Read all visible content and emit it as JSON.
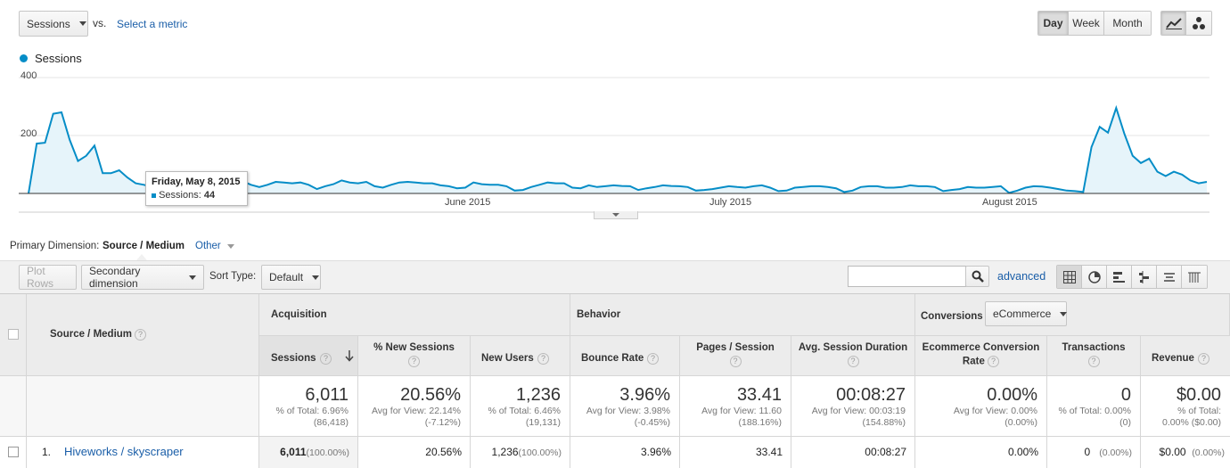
{
  "metric_select": {
    "value": "Sessions"
  },
  "vs_label": "vs.",
  "select_metric_link": "Select a metric",
  "period_buttons": [
    "Day",
    "Week",
    "Month"
  ],
  "active_period": "Day",
  "legend": {
    "series_name": "Sessions",
    "color": "#058dc7"
  },
  "chart_data": {
    "type": "area",
    "series": [
      {
        "name": "Sessions",
        "values": [
          0,
          172,
          175,
          275,
          280,
          185,
          112,
          130,
          165,
          70,
          70,
          80,
          55,
          35,
          30,
          22,
          20,
          15,
          25,
          40,
          44,
          25,
          30,
          48,
          45,
          48,
          42,
          30,
          22,
          30,
          40,
          38,
          35,
          38,
          30,
          15,
          25,
          32,
          45,
          38,
          35,
          40,
          25,
          20,
          30,
          38,
          40,
          38,
          35,
          35,
          28,
          25,
          18,
          20,
          38,
          32,
          30,
          30,
          25,
          10,
          12,
          22,
          30,
          38,
          35,
          35,
          20,
          18,
          28,
          22,
          25,
          28,
          26,
          25,
          12,
          18,
          22,
          28,
          26,
          25,
          22,
          10,
          12,
          15,
          20,
          25,
          22,
          20,
          25,
          28,
          20,
          8,
          10,
          20,
          22,
          25,
          25,
          22,
          18,
          5,
          10,
          22,
          25,
          25,
          20,
          20,
          22,
          28,
          25,
          25,
          22,
          8,
          12,
          15,
          22,
          20,
          20,
          22,
          25,
          2,
          10,
          20,
          25,
          24,
          20,
          15,
          10,
          8,
          5,
          160,
          230,
          210,
          295,
          205,
          130,
          105,
          120,
          75,
          60,
          75,
          65,
          45,
          35,
          40
        ]
      }
    ],
    "x_ticks": [
      "June 2015",
      "July 2015",
      "August 2015"
    ],
    "y_ticks": [
      200,
      400
    ],
    "ylim": [
      0,
      400
    ],
    "tooltip": {
      "date": "Friday, May 8, 2015",
      "label": "Sessions:",
      "value": "44"
    }
  },
  "primary_dimension": {
    "label": "Primary Dimension:",
    "value": "Source / Medium",
    "other": "Other"
  },
  "toolbar": {
    "plot_rows": "Plot Rows",
    "secondary_dimension": "Secondary dimension",
    "sort_type_label": "Sort Type:",
    "sort_type_value": "Default",
    "search_placeholder": "",
    "advanced": "advanced"
  },
  "table": {
    "first_col_header": "Source / Medium",
    "groups": {
      "acquisition": "Acquisition",
      "behavior": "Behavior",
      "conversions": "Conversions",
      "conversions_select": "eCommerce"
    },
    "columns": {
      "sessions": "Sessions",
      "new_sessions": "% New Sessions",
      "new_users": "New Users",
      "bounce_rate": "Bounce Rate",
      "pages_session": "Pages / Session",
      "avg_duration": "Avg. Session Duration",
      "ecom_rate_1": "Ecommerce Conversion",
      "ecom_rate_2": "Rate",
      "transactions": "Transactions",
      "revenue": "Revenue"
    },
    "totals": {
      "sessions": {
        "value": "6,011",
        "sub1": "% of Total: 6.96%",
        "sub2": "(86,418)"
      },
      "new_sessions": {
        "value": "20.56%",
        "sub1": "Avg for View: 22.14%",
        "sub2": "(-7.12%)"
      },
      "new_users": {
        "value": "1,236",
        "sub1": "% of Total: 6.46%",
        "sub2": "(19,131)"
      },
      "bounce_rate": {
        "value": "3.96%",
        "sub1": "Avg for View: 3.98%",
        "sub2": "(-0.45%)"
      },
      "pages_session": {
        "value": "33.41",
        "sub1": "Avg for View: 11.60",
        "sub2": "(188.16%)"
      },
      "avg_duration": {
        "value": "00:08:27",
        "sub1": "Avg for View: 00:03:19",
        "sub2": "(154.88%)"
      },
      "ecom_rate": {
        "value": "0.00%",
        "sub1": "Avg for View: 0.00%",
        "sub2": "(0.00%)"
      },
      "transactions": {
        "value": "0",
        "sub1": "% of Total: 0.00%",
        "sub2": "(0)"
      },
      "revenue": {
        "value": "$0.00",
        "sub1": "% of Total:",
        "sub2": "0.00% ($0.00)"
      }
    },
    "rows": [
      {
        "index": "1.",
        "name": "Hiveworks / skyscraper",
        "sessions": "6,011",
        "sessions_pct": "(100.00%)",
        "new_sessions": "20.56%",
        "new_users": "1,236",
        "new_users_pct": "(100.00%)",
        "bounce_rate": "3.96%",
        "pages_session": "33.41",
        "avg_duration": "00:08:27",
        "ecom_rate": "0.00%",
        "transactions": "0",
        "transactions_pct": "(0.00%)",
        "revenue": "$0.00",
        "revenue_pct": "(0.00%)"
      }
    ]
  }
}
